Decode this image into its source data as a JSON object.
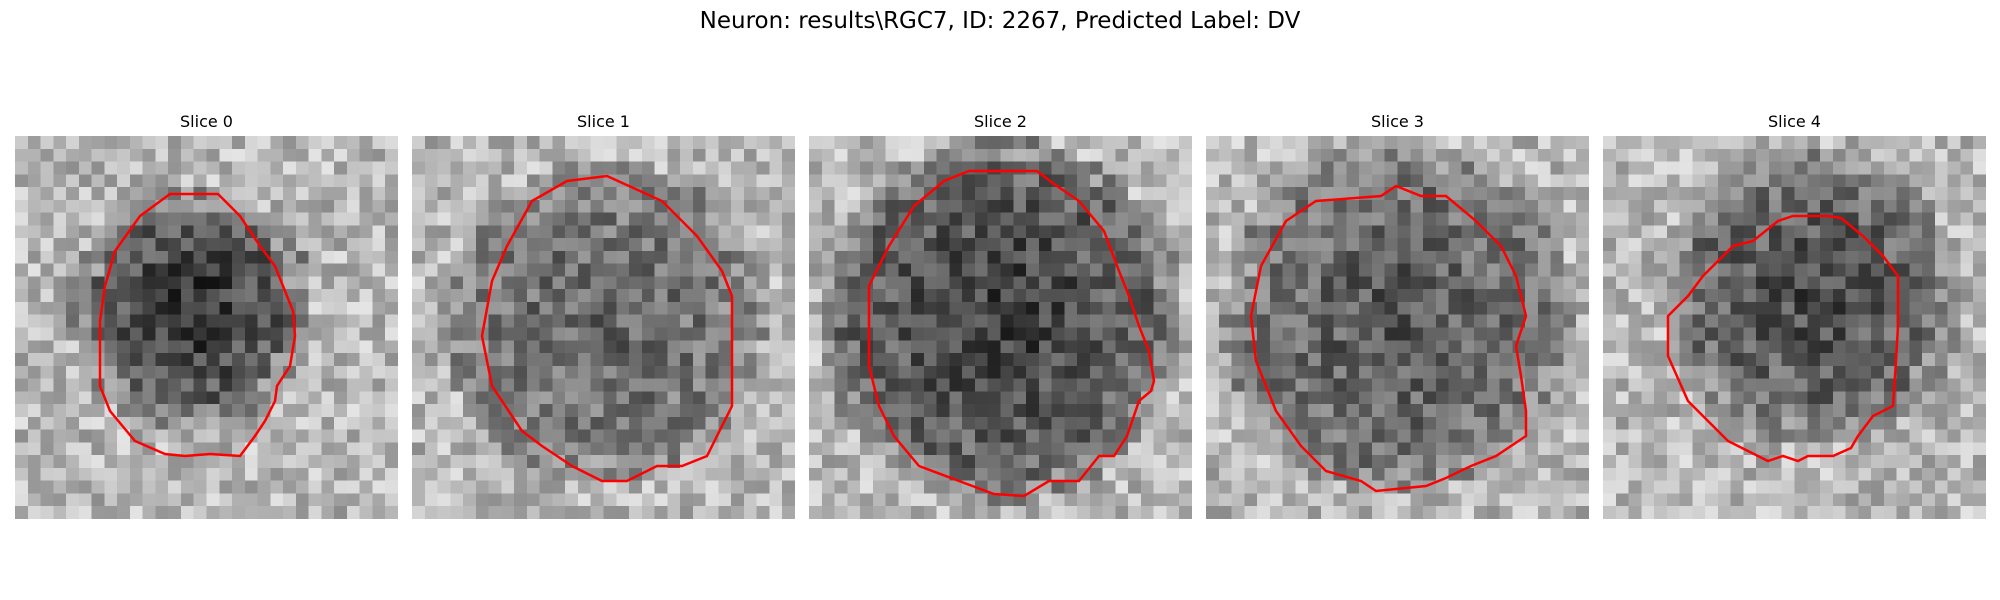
{
  "figure": {
    "title": "Neuron: results\\RGC7, ID: 2267, Predicted Label: DV"
  },
  "slices": [
    {
      "title": "Slice 0"
    },
    {
      "title": "Slice 1"
    },
    {
      "title": "Slice 2"
    },
    {
      "title": "Slice 3"
    },
    {
      "title": "Slice 4"
    }
  ],
  "colors": {
    "contour": "#ff0000",
    "background": "#ffffff"
  }
}
